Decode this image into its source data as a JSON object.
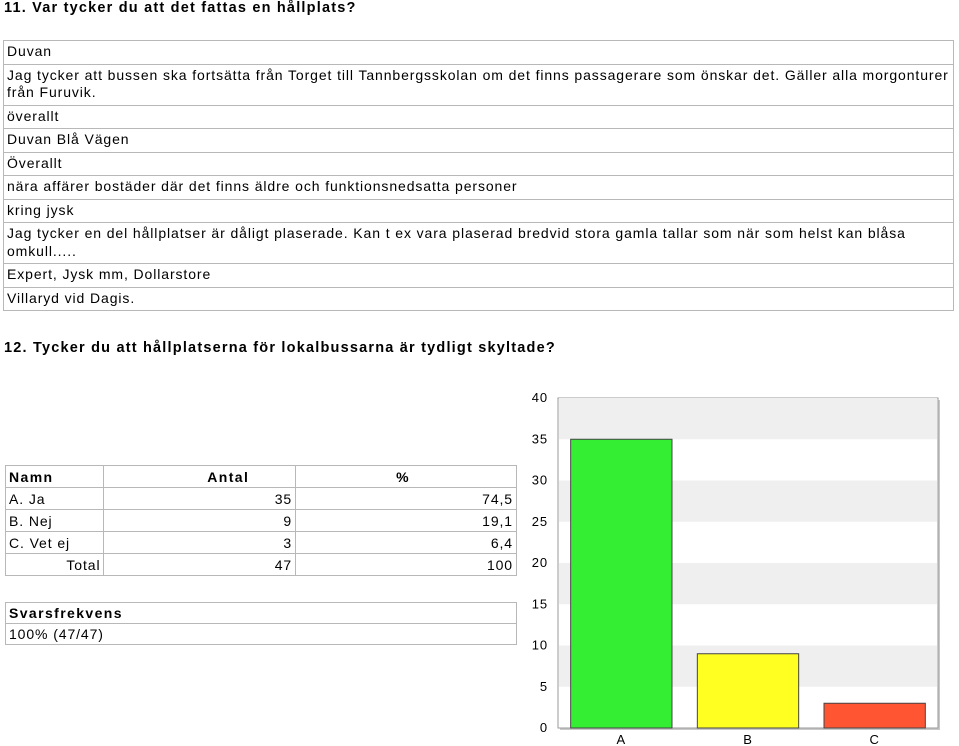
{
  "q11": {
    "title": "11. Var tycker du att det fattas en hållplats?",
    "answers": [
      "Duvan",
      "Jag tycker att bussen ska fortsätta från Torget till Tannbergsskolan om det finns passagerare som önskar det. Gäller alla morgonturer från Furuvik.",
      "överallt",
      "Duvan Blå Vägen",
      "Överallt",
      "nära affärer bostäder där det finns äldre och funktionsnedsatta personer",
      "kring jysk",
      "Jag tycker en del hållplatser är dåligt plaserade. Kan t ex vara plaserad bredvid stora gamla tallar som när som helst kan blåsa omkull.....",
      "Expert, Jysk mm, Dollarstore",
      "Villaryd vid Dagis."
    ]
  },
  "q12": {
    "title": "12. Tycker du att hållplatserna för lokalbussarna är tydligt skyltade?",
    "table": {
      "headers": [
        "Namn",
        "Antal",
        "%"
      ],
      "rows": [
        {
          "name": "A. Ja",
          "count": "35",
          "percent": "74,5"
        },
        {
          "name": "B. Nej",
          "count": "9",
          "percent": "19,1"
        },
        {
          "name": "C. Vet ej",
          "count": "3",
          "percent": "6,4"
        }
      ],
      "total": {
        "label": "Total",
        "count": "47",
        "percent": "100"
      }
    },
    "response": {
      "header": "Svarsfrekvens",
      "value": "100% (47/47)"
    }
  },
  "chart_data": {
    "type": "bar",
    "categories": [
      "A",
      "B",
      "C"
    ],
    "values": [
      35,
      9,
      3
    ],
    "colors": [
      "#33ee33",
      "#ffff22",
      "#ff5533"
    ],
    "ylim": [
      0,
      40
    ],
    "yticks": [
      0,
      5,
      10,
      15,
      20,
      25,
      30,
      35,
      40
    ],
    "grid": true,
    "title": "",
    "xlabel": "",
    "ylabel": ""
  }
}
